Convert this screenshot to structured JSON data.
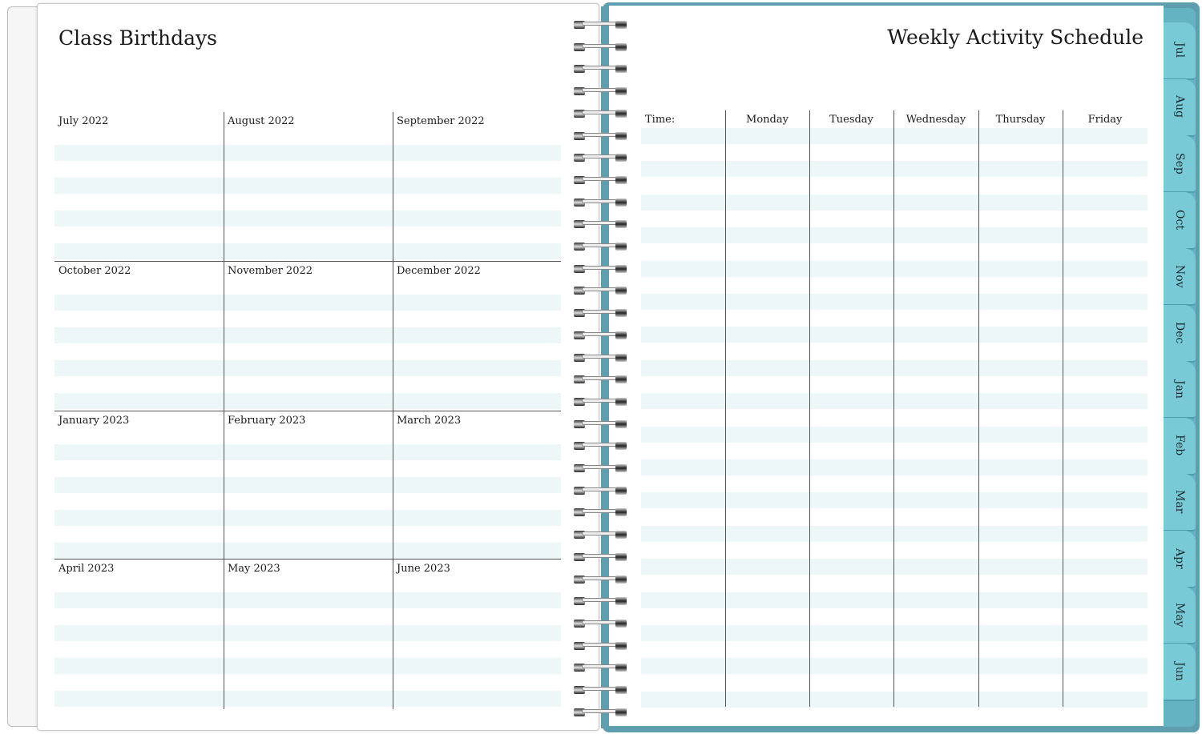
{
  "left_page": {
    "title": "Class Birthdays",
    "months": [
      "July 2022",
      "August 2022",
      "September 2022",
      "October 2022",
      "November 2022",
      "December 2022",
      "January 2023",
      "February 2023",
      "March 2023",
      "April 2023",
      "May 2023",
      "June 2023"
    ]
  },
  "right_page": {
    "title": "Weekly Activity Schedule",
    "columns": [
      "Time:",
      "Monday",
      "Tuesday",
      "Wednesday",
      "Thursday",
      "Friday"
    ]
  },
  "tabs": [
    "Jul",
    "Aug",
    "Sep",
    "Oct",
    "Nov",
    "Dec",
    "Jan",
    "Feb",
    "Mar",
    "Apr",
    "May",
    "Jun"
  ],
  "colors": {
    "cover": "#5e9eae",
    "tab": "#78cbd6",
    "stripe": "#eef7f7"
  }
}
